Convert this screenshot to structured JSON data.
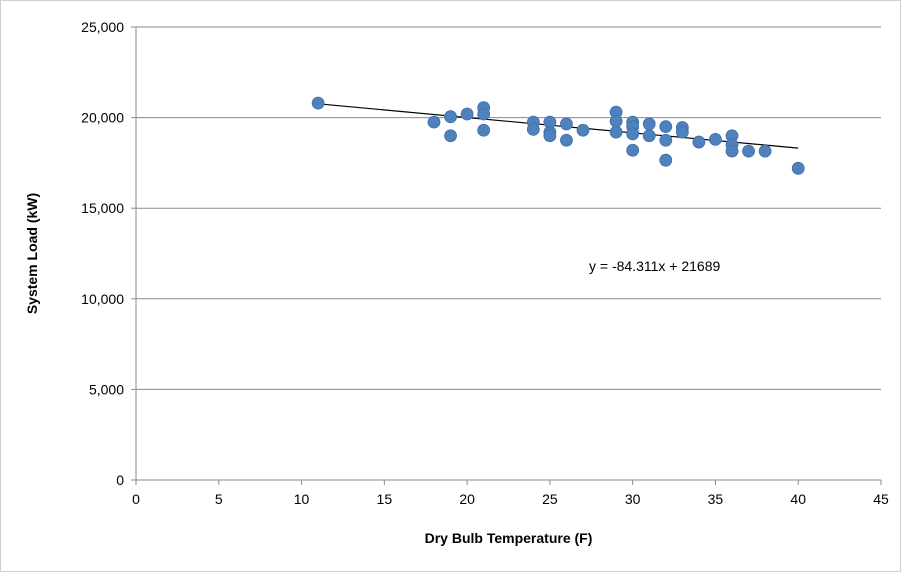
{
  "chart_data": {
    "type": "scatter",
    "title": "",
    "xlabel": "Dry Bulb Temperature (F)",
    "ylabel": "System Load (kW)",
    "xlim": [
      0,
      45
    ],
    "ylim": [
      0,
      25000
    ],
    "x_ticks": [
      0,
      5,
      10,
      15,
      20,
      25,
      30,
      35,
      40,
      45
    ],
    "x_tick_labels": [
      "0",
      "5",
      "10",
      "15",
      "20",
      "25",
      "30",
      "35",
      "40",
      "45"
    ],
    "y_ticks": [
      0,
      5000,
      10000,
      15000,
      20000,
      25000
    ],
    "y_tick_labels": [
      "0",
      "5,000",
      "10,000",
      "15,000",
      "20,000",
      "25,000"
    ],
    "grid": "horizontal",
    "marker_color": "#4f81bd",
    "trendline_color": "#000000",
    "series": [
      {
        "points": [
          [
            11,
            20800
          ],
          [
            18,
            19750
          ],
          [
            19,
            20050
          ],
          [
            19,
            19000
          ],
          [
            20,
            20200
          ],
          [
            21,
            20550
          ],
          [
            21,
            20200
          ],
          [
            21,
            19300
          ],
          [
            24,
            19750
          ],
          [
            24,
            19350
          ],
          [
            25,
            19750
          ],
          [
            25,
            19200
          ],
          [
            25,
            19000
          ],
          [
            26,
            19650
          ],
          [
            26,
            18750
          ],
          [
            27,
            19300
          ],
          [
            29,
            20300
          ],
          [
            29,
            19800
          ],
          [
            29,
            19200
          ],
          [
            30,
            19750
          ],
          [
            30,
            19500
          ],
          [
            30,
            19100
          ],
          [
            30,
            18200
          ],
          [
            31,
            19650
          ],
          [
            31,
            19000
          ],
          [
            32,
            19500
          ],
          [
            32,
            18750
          ],
          [
            32,
            17650
          ],
          [
            33,
            19450
          ],
          [
            33,
            19200
          ],
          [
            34,
            18650
          ],
          [
            35,
            18800
          ],
          [
            36,
            19000
          ],
          [
            36,
            18500
          ],
          [
            36,
            18150
          ],
          [
            37,
            18150
          ],
          [
            38,
            18150
          ],
          [
            40,
            17200
          ]
        ]
      }
    ],
    "trendline": {
      "slope": -84.311,
      "intercept": 21689,
      "x_start": 11,
      "x_end": 40,
      "equation_label": "y = -84.311x + 21689"
    }
  }
}
